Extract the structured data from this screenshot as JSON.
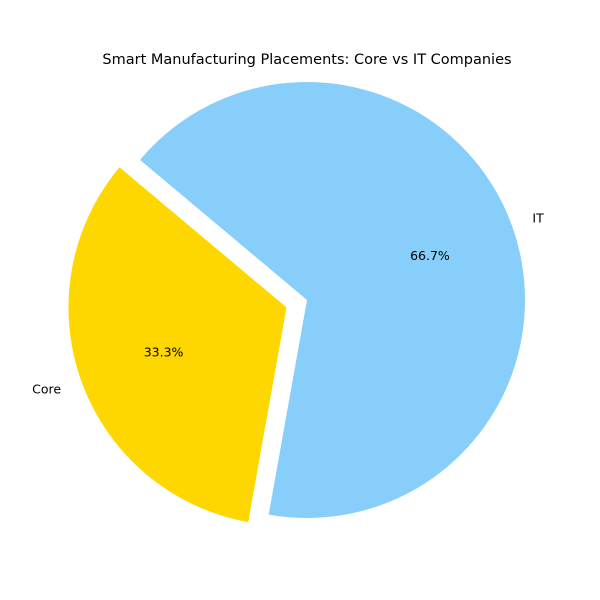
{
  "chart_data": {
    "type": "pie",
    "title": "Smart Manufacturing Placements: Core vs IT Companies",
    "slices": [
      {
        "label": "Core",
        "value": 33.3,
        "pct_label": "33.3%",
        "color": "#FFD700",
        "exploded": true
      },
      {
        "label": "IT",
        "value": 66.7,
        "pct_label": "66.7%",
        "color": "#87CEFA",
        "exploded": false
      }
    ],
    "start_angle_deg": 140,
    "direction": "counterclockwise",
    "legend": "none"
  }
}
